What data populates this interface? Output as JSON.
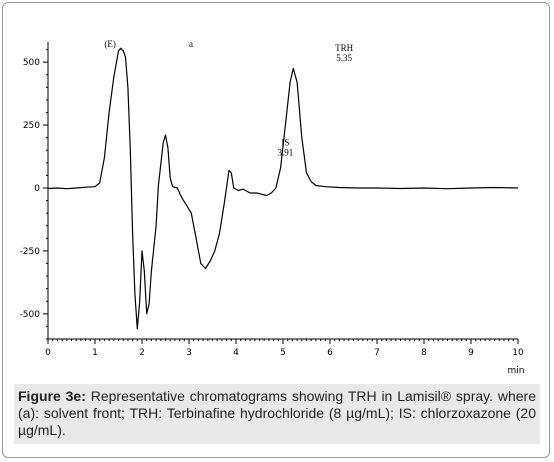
{
  "chart_data": {
    "type": "line",
    "xlabel": "min",
    "ylabel": "",
    "xlim": [
      0,
      10
    ],
    "ylim": [
      -600,
      580
    ],
    "x_ticks": [
      "0",
      "1",
      "2",
      "3",
      "4",
      "5",
      "6",
      "7",
      "8",
      "9",
      "10"
    ],
    "y_ticks": [
      "500",
      "250",
      "0",
      "-250",
      "-500"
    ],
    "grid": false,
    "series": [
      {
        "points": [
          [
            0.0,
            -2
          ],
          [
            0.2,
            0
          ],
          [
            0.4,
            -3
          ],
          [
            0.6,
            0
          ],
          [
            0.8,
            3
          ],
          [
            1.0,
            5
          ],
          [
            1.1,
            20
          ],
          [
            1.2,
            120
          ],
          [
            1.3,
            300
          ],
          [
            1.4,
            440
          ],
          [
            1.5,
            545
          ],
          [
            1.55,
            555
          ],
          [
            1.6,
            545
          ],
          [
            1.65,
            520
          ],
          [
            1.7,
            400
          ],
          [
            1.75,
            150
          ],
          [
            1.8,
            -180
          ],
          [
            1.85,
            -420
          ],
          [
            1.9,
            -560
          ],
          [
            1.95,
            -450
          ],
          [
            2.0,
            -250
          ],
          [
            2.05,
            -330
          ],
          [
            2.1,
            -500
          ],
          [
            2.15,
            -460
          ],
          [
            2.2,
            -330
          ],
          [
            2.3,
            -150
          ],
          [
            2.35,
            10
          ],
          [
            2.45,
            180
          ],
          [
            2.5,
            210
          ],
          [
            2.55,
            160
          ],
          [
            2.6,
            40
          ],
          [
            2.65,
            5
          ],
          [
            2.75,
            0
          ],
          [
            2.85,
            -40
          ],
          [
            2.95,
            -70
          ],
          [
            3.05,
            -100
          ],
          [
            3.15,
            -200
          ],
          [
            3.25,
            -300
          ],
          [
            3.35,
            -320
          ],
          [
            3.45,
            -290
          ],
          [
            3.55,
            -250
          ],
          [
            3.65,
            -180
          ],
          [
            3.75,
            -60
          ],
          [
            3.85,
            70
          ],
          [
            3.9,
            60
          ],
          [
            3.95,
            0
          ],
          [
            4.05,
            -10
          ],
          [
            4.15,
            -5
          ],
          [
            4.3,
            -20
          ],
          [
            4.45,
            -20
          ],
          [
            4.55,
            -25
          ],
          [
            4.65,
            -30
          ],
          [
            4.75,
            -20
          ],
          [
            4.85,
            0
          ],
          [
            4.95,
            80
          ],
          [
            5.05,
            250
          ],
          [
            5.15,
            420
          ],
          [
            5.22,
            475
          ],
          [
            5.3,
            420
          ],
          [
            5.4,
            200
          ],
          [
            5.5,
            60
          ],
          [
            5.6,
            25
          ],
          [
            5.7,
            10
          ],
          [
            5.9,
            5
          ],
          [
            6.2,
            2
          ],
          [
            6.6,
            0
          ],
          [
            7.0,
            0
          ],
          [
            7.5,
            -2
          ],
          [
            8.0,
            0
          ],
          [
            8.5,
            -3
          ],
          [
            9.0,
            0
          ],
          [
            9.5,
            2
          ],
          [
            10.0,
            0
          ]
        ]
      }
    ],
    "annotations": [
      {
        "text": "(E)",
        "x": 1.2,
        "y": 560
      },
      {
        "text": "a",
        "x": 3.0,
        "y": 560
      },
      {
        "text": "TRH",
        "x": 6.3,
        "y": 545,
        "value": "5.35"
      },
      {
        "text": "IS",
        "x": 5.05,
        "y": 168,
        "value": "3.91"
      }
    ]
  },
  "caption": {
    "label": "Figure 3e:",
    "text": " Representative chromatograms showing TRH in Lamisil® spray. where (a): solvent front; TRH: Terbinafine hydrochloride (8 µg/mL); IS: chlorzoxazone (20 µg/mL)."
  },
  "colors": {
    "line": "#000000",
    "caption_bg": "#e9e9e9",
    "frame": "#9a9a9a"
  }
}
